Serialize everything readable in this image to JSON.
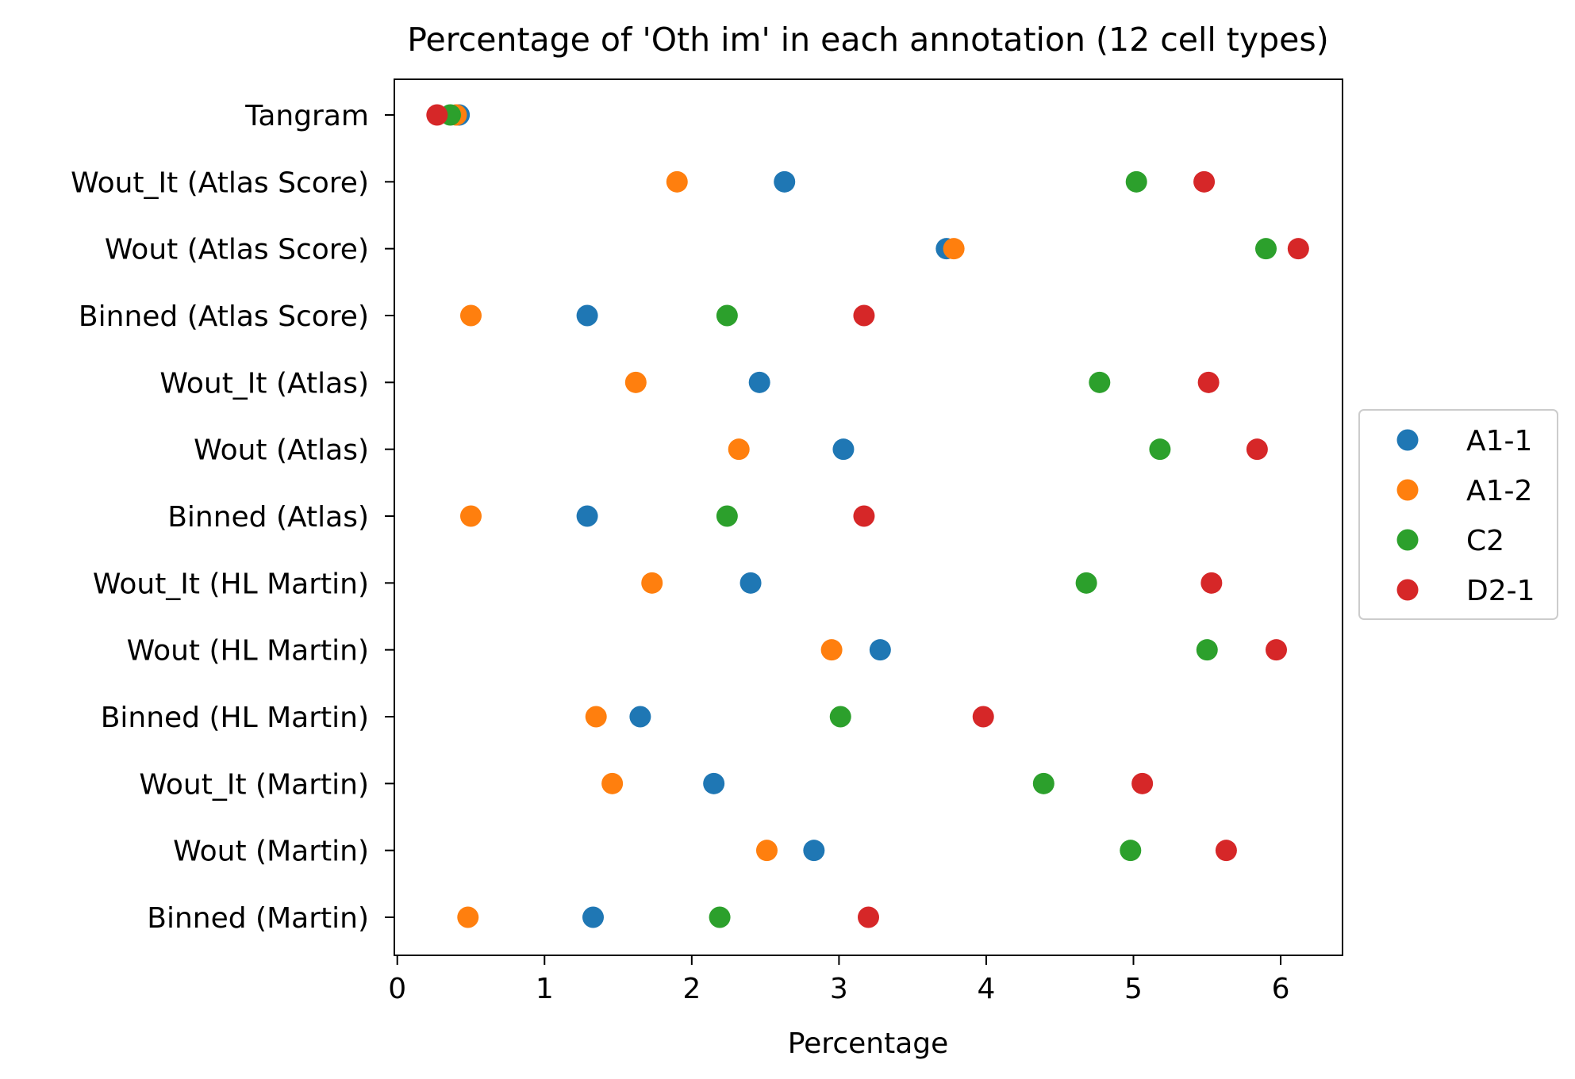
{
  "chart_data": {
    "type": "scatter",
    "title": "Percentage of 'Oth im' in each annotation (12 cell types)",
    "xlabel": "Percentage",
    "ylabel": "",
    "xlim": [
      -0.02,
      6.42
    ],
    "xticks": [
      0,
      1,
      2,
      3,
      4,
      5,
      6
    ],
    "grid": false,
    "legend_position": "center-right-outside",
    "categories": [
      "Tangram",
      "Wout_It (Atlas Score)",
      "Wout (Atlas Score)",
      "Binned (Atlas Score)",
      "Wout_It (Atlas)",
      "Wout (Atlas)",
      "Binned (Atlas)",
      "Wout_It (HL Martin)",
      "Wout (HL Martin)",
      "Binned (HL Martin)",
      "Wout_It (Martin)",
      "Wout (Martin)",
      "Binned (Martin)"
    ],
    "series": [
      {
        "name": "A1-1",
        "color": "#1f77b4",
        "values": [
          0.42,
          2.63,
          3.73,
          1.29,
          2.46,
          3.03,
          1.29,
          2.4,
          3.28,
          1.65,
          2.15,
          2.83,
          1.33
        ]
      },
      {
        "name": "A1-2",
        "color": "#ff7f0e",
        "values": [
          0.4,
          1.9,
          3.78,
          0.5,
          1.62,
          2.32,
          0.5,
          1.73,
          2.95,
          1.35,
          1.46,
          2.51,
          0.48
        ]
      },
      {
        "name": "C2",
        "color": "#2ca02c",
        "values": [
          0.36,
          5.02,
          5.9,
          2.24,
          4.77,
          5.18,
          2.24,
          4.68,
          5.5,
          3.01,
          4.39,
          4.98,
          2.19
        ]
      },
      {
        "name": "D2-1",
        "color": "#d62728",
        "values": [
          0.27,
          5.48,
          6.12,
          3.17,
          5.51,
          5.84,
          3.17,
          5.53,
          5.97,
          3.98,
          5.06,
          5.63,
          3.2
        ]
      }
    ]
  }
}
